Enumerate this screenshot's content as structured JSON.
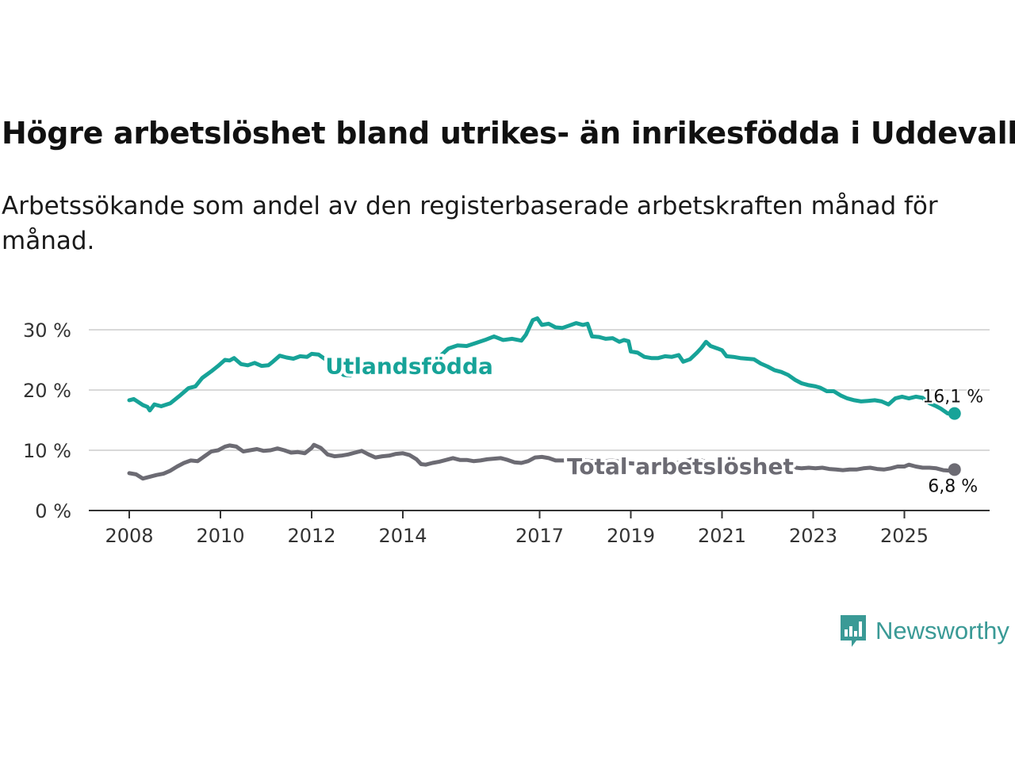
{
  "chart_data": {
    "type": "line",
    "title": "Högre arbetslöshet bland utrikes- än inrikesfödda i Uddevalla",
    "subtitle": "Arbetssökande som andel av den registerbaserade arbetskraften månad för månad.",
    "xlabel": "",
    "ylabel": "",
    "xlim": [
      2008,
      2026.2
    ],
    "ylim": [
      0,
      32
    ],
    "y_ticks": [
      0,
      10,
      20,
      30
    ],
    "y_tick_labels": [
      "0 %",
      "10 %",
      "20 %",
      "30 %"
    ],
    "x_ticks": [
      2008,
      2010,
      2012,
      2014,
      2017,
      2019,
      2021,
      2023,
      2025
    ],
    "x_tick_labels": [
      "2008",
      "2010",
      "2012",
      "2014",
      "2017",
      "2019",
      "2021",
      "2023",
      "2025"
    ],
    "grid": true,
    "series": [
      {
        "name": "Utlandsfödda",
        "color": "#17a398",
        "end_label": "16,1 %",
        "points": [
          [
            2008.0,
            18.3
          ],
          [
            2008.1,
            18.5
          ],
          [
            2008.3,
            17.5
          ],
          [
            2008.4,
            17.2
          ],
          [
            2008.45,
            16.6
          ],
          [
            2008.55,
            17.6
          ],
          [
            2008.7,
            17.3
          ],
          [
            2008.9,
            17.8
          ],
          [
            2009.1,
            19.0
          ],
          [
            2009.3,
            20.3
          ],
          [
            2009.45,
            20.6
          ],
          [
            2009.6,
            22.0
          ],
          [
            2009.8,
            23.1
          ],
          [
            2009.95,
            24.0
          ],
          [
            2010.1,
            25.0
          ],
          [
            2010.2,
            24.9
          ],
          [
            2010.3,
            25.3
          ],
          [
            2010.45,
            24.3
          ],
          [
            2010.6,
            24.1
          ],
          [
            2010.75,
            24.5
          ],
          [
            2010.9,
            24.0
          ],
          [
            2011.05,
            24.1
          ],
          [
            2011.15,
            24.7
          ],
          [
            2011.3,
            25.7
          ],
          [
            2011.45,
            25.4
          ],
          [
            2011.6,
            25.2
          ],
          [
            2011.75,
            25.6
          ],
          [
            2011.9,
            25.5
          ],
          [
            2012.0,
            26.0
          ],
          [
            2012.15,
            25.9
          ],
          [
            2012.3,
            25.1
          ],
          [
            2012.5,
            23.8
          ],
          [
            2012.7,
            22.5
          ],
          [
            2012.85,
            22.4
          ],
          [
            2013.0,
            23.5
          ],
          [
            2013.3,
            23.1
          ],
          [
            2013.5,
            23.7
          ],
          [
            2013.7,
            24.4
          ],
          [
            2013.9,
            23.1
          ],
          [
            2014.2,
            22.7
          ],
          [
            2014.4,
            23.3
          ],
          [
            2014.6,
            24.3
          ],
          [
            2014.8,
            25.5
          ],
          [
            2015.0,
            26.9
          ],
          [
            2015.2,
            27.4
          ],
          [
            2015.4,
            27.3
          ],
          [
            2015.6,
            27.8
          ],
          [
            2015.8,
            28.3
          ],
          [
            2016.0,
            28.9
          ],
          [
            2016.2,
            28.3
          ],
          [
            2016.4,
            28.5
          ],
          [
            2016.6,
            28.2
          ],
          [
            2016.7,
            29.2
          ],
          [
            2016.85,
            31.6
          ],
          [
            2016.95,
            31.9
          ],
          [
            2017.05,
            30.8
          ],
          [
            2017.2,
            31.0
          ],
          [
            2017.35,
            30.4
          ],
          [
            2017.5,
            30.3
          ],
          [
            2017.65,
            30.7
          ],
          [
            2017.8,
            31.1
          ],
          [
            2017.95,
            30.8
          ],
          [
            2018.05,
            31.0
          ],
          [
            2018.15,
            28.9
          ],
          [
            2018.3,
            28.8
          ],
          [
            2018.45,
            28.5
          ],
          [
            2018.6,
            28.6
          ],
          [
            2018.75,
            28.0
          ],
          [
            2018.85,
            28.3
          ],
          [
            2018.95,
            28.1
          ],
          [
            2019.0,
            26.4
          ],
          [
            2019.15,
            26.2
          ],
          [
            2019.3,
            25.5
          ],
          [
            2019.45,
            25.3
          ],
          [
            2019.6,
            25.3
          ],
          [
            2019.75,
            25.6
          ],
          [
            2019.9,
            25.5
          ],
          [
            2020.05,
            25.8
          ],
          [
            2020.15,
            24.7
          ],
          [
            2020.3,
            25.1
          ],
          [
            2020.45,
            26.2
          ],
          [
            2020.55,
            27.0
          ],
          [
            2020.65,
            28.0
          ],
          [
            2020.75,
            27.3
          ],
          [
            2020.9,
            26.9
          ],
          [
            2021.0,
            26.6
          ],
          [
            2021.1,
            25.6
          ],
          [
            2021.25,
            25.5
          ],
          [
            2021.4,
            25.3
          ],
          [
            2021.55,
            25.2
          ],
          [
            2021.7,
            25.1
          ],
          [
            2021.85,
            24.4
          ],
          [
            2022.0,
            23.9
          ],
          [
            2022.15,
            23.3
          ],
          [
            2022.3,
            23.0
          ],
          [
            2022.45,
            22.5
          ],
          [
            2022.6,
            21.7
          ],
          [
            2022.75,
            21.1
          ],
          [
            2022.9,
            20.8
          ],
          [
            2023.05,
            20.6
          ],
          [
            2023.15,
            20.4
          ],
          [
            2023.3,
            19.8
          ],
          [
            2023.45,
            19.8
          ],
          [
            2023.6,
            19.1
          ],
          [
            2023.75,
            18.6
          ],
          [
            2023.9,
            18.3
          ],
          [
            2024.05,
            18.1
          ],
          [
            2024.2,
            18.2
          ],
          [
            2024.35,
            18.3
          ],
          [
            2024.5,
            18.1
          ],
          [
            2024.65,
            17.6
          ],
          [
            2024.8,
            18.6
          ],
          [
            2024.95,
            18.9
          ],
          [
            2025.1,
            18.6
          ],
          [
            2025.25,
            18.9
          ],
          [
            2025.4,
            18.7
          ],
          [
            2025.55,
            17.8
          ],
          [
            2025.7,
            17.3
          ],
          [
            2025.8,
            16.9
          ],
          [
            2025.95,
            16.1
          ],
          [
            2026.1,
            16.1
          ]
        ]
      },
      {
        "name": "Total arbetslöshet",
        "color": "#6c6b73",
        "end_label": "6,8 %",
        "points": [
          [
            2008.0,
            6.2
          ],
          [
            2008.15,
            6.0
          ],
          [
            2008.3,
            5.3
          ],
          [
            2008.45,
            5.6
          ],
          [
            2008.6,
            5.9
          ],
          [
            2008.75,
            6.1
          ],
          [
            2008.9,
            6.6
          ],
          [
            2009.05,
            7.3
          ],
          [
            2009.2,
            7.9
          ],
          [
            2009.35,
            8.3
          ],
          [
            2009.5,
            8.2
          ],
          [
            2009.65,
            9.0
          ],
          [
            2009.8,
            9.8
          ],
          [
            2009.95,
            10.0
          ],
          [
            2010.1,
            10.6
          ],
          [
            2010.2,
            10.8
          ],
          [
            2010.35,
            10.6
          ],
          [
            2010.5,
            9.8
          ],
          [
            2010.65,
            10.0
          ],
          [
            2010.8,
            10.2
          ],
          [
            2010.95,
            9.9
          ],
          [
            2011.1,
            10.0
          ],
          [
            2011.25,
            10.3
          ],
          [
            2011.4,
            10.0
          ],
          [
            2011.55,
            9.6
          ],
          [
            2011.7,
            9.7
          ],
          [
            2011.85,
            9.5
          ],
          [
            2012.0,
            10.4
          ],
          [
            2012.05,
            10.9
          ],
          [
            2012.2,
            10.4
          ],
          [
            2012.35,
            9.3
          ],
          [
            2012.5,
            9.0
          ],
          [
            2012.65,
            9.1
          ],
          [
            2012.8,
            9.3
          ],
          [
            2012.95,
            9.6
          ],
          [
            2013.1,
            9.9
          ],
          [
            2013.25,
            9.3
          ],
          [
            2013.4,
            8.8
          ],
          [
            2013.55,
            9.0
          ],
          [
            2013.7,
            9.1
          ],
          [
            2013.85,
            9.4
          ],
          [
            2014.0,
            9.5
          ],
          [
            2014.15,
            9.2
          ],
          [
            2014.3,
            8.5
          ],
          [
            2014.4,
            7.7
          ],
          [
            2014.5,
            7.6
          ],
          [
            2014.65,
            7.9
          ],
          [
            2014.8,
            8.1
          ],
          [
            2014.95,
            8.4
          ],
          [
            2015.1,
            8.7
          ],
          [
            2015.25,
            8.4
          ],
          [
            2015.4,
            8.4
          ],
          [
            2015.55,
            8.2
          ],
          [
            2015.7,
            8.3
          ],
          [
            2015.85,
            8.5
          ],
          [
            2016.0,
            8.6
          ],
          [
            2016.15,
            8.7
          ],
          [
            2016.3,
            8.4
          ],
          [
            2016.45,
            8.0
          ],
          [
            2016.6,
            7.9
          ],
          [
            2016.75,
            8.2
          ],
          [
            2016.9,
            8.8
          ],
          [
            2017.05,
            8.9
          ],
          [
            2017.2,
            8.7
          ],
          [
            2017.35,
            8.3
          ],
          [
            2017.5,
            8.3
          ],
          [
            2017.7,
            8.3
          ],
          [
            2018.0,
            8.3
          ],
          [
            2018.3,
            8.1
          ],
          [
            2018.6,
            8.3
          ],
          [
            2018.9,
            7.9
          ],
          [
            2019.2,
            7.7
          ],
          [
            2019.5,
            7.9
          ],
          [
            2019.8,
            7.6
          ],
          [
            2020.1,
            8.0
          ],
          [
            2020.4,
            8.6
          ],
          [
            2020.7,
            8.0
          ],
          [
            2021.0,
            7.8
          ],
          [
            2021.3,
            7.6
          ],
          [
            2021.6,
            7.5
          ],
          [
            2021.9,
            7.3
          ],
          [
            2022.2,
            7.4
          ],
          [
            2022.5,
            7.2
          ],
          [
            2022.75,
            7.0
          ],
          [
            2022.9,
            7.1
          ],
          [
            2023.05,
            7.0
          ],
          [
            2023.2,
            7.1
          ],
          [
            2023.35,
            6.9
          ],
          [
            2023.5,
            6.8
          ],
          [
            2023.65,
            6.7
          ],
          [
            2023.8,
            6.8
          ],
          [
            2023.95,
            6.8
          ],
          [
            2024.1,
            7.0
          ],
          [
            2024.25,
            7.1
          ],
          [
            2024.4,
            6.9
          ],
          [
            2024.55,
            6.8
          ],
          [
            2024.7,
            7.0
          ],
          [
            2024.85,
            7.3
          ],
          [
            2025.0,
            7.3
          ],
          [
            2025.1,
            7.6
          ],
          [
            2025.25,
            7.3
          ],
          [
            2025.4,
            7.1
          ],
          [
            2025.55,
            7.1
          ],
          [
            2025.7,
            7.0
          ],
          [
            2025.85,
            6.7
          ],
          [
            2026.0,
            6.6
          ],
          [
            2026.1,
            6.8
          ]
        ]
      }
    ],
    "annotations": [
      {
        "text": "Utlandsfödda",
        "series": 0
      },
      {
        "text": "Total arbetslöshet",
        "series": 1
      }
    ]
  },
  "footer": {
    "brand": "Newsworthy",
    "logo_icon": "newsworthy-bar-chart-icon",
    "logo_color": "#3a9a96"
  }
}
